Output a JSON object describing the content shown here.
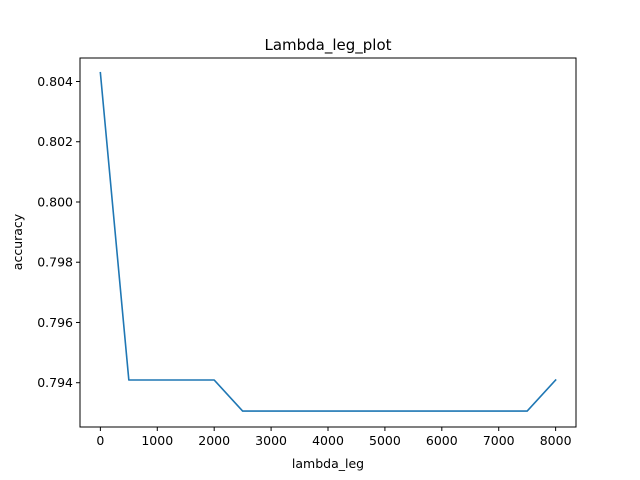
{
  "chart_data": {
    "type": "line",
    "title": "Lambda_leg_plot",
    "xlabel": "lambda_leg",
    "ylabel": "accuracy",
    "xlim": [
      -358,
      8358
    ],
    "ylim": [
      0.79253,
      0.80478
    ],
    "xticks": [
      0,
      1000,
      2000,
      3000,
      4000,
      5000,
      6000,
      7000,
      8000
    ],
    "xtick_labels": [
      "0",
      "1000",
      "2000",
      "3000",
      "4000",
      "5000",
      "6000",
      "7000",
      "8000"
    ],
    "yticks": [
      0.794,
      0.796,
      0.798,
      0.8,
      0.802,
      0.804
    ],
    "ytick_labels": [
      "0.794",
      "0.796",
      "0.798",
      "0.800",
      "0.802",
      "0.804"
    ],
    "grid": false,
    "series": [
      {
        "color": "#1f77b4",
        "x": [
          0,
          500,
          1000,
          1500,
          2000,
          2500,
          3000,
          3500,
          4000,
          4500,
          5000,
          5500,
          6000,
          6500,
          7000,
          7500,
          8000
        ],
        "y": [
          0.80429,
          0.79409,
          0.79409,
          0.79409,
          0.79409,
          0.79306,
          0.79306,
          0.79306,
          0.79306,
          0.79306,
          0.79306,
          0.79306,
          0.79306,
          0.79306,
          0.79306,
          0.79306,
          0.79409
        ]
      }
    ]
  }
}
